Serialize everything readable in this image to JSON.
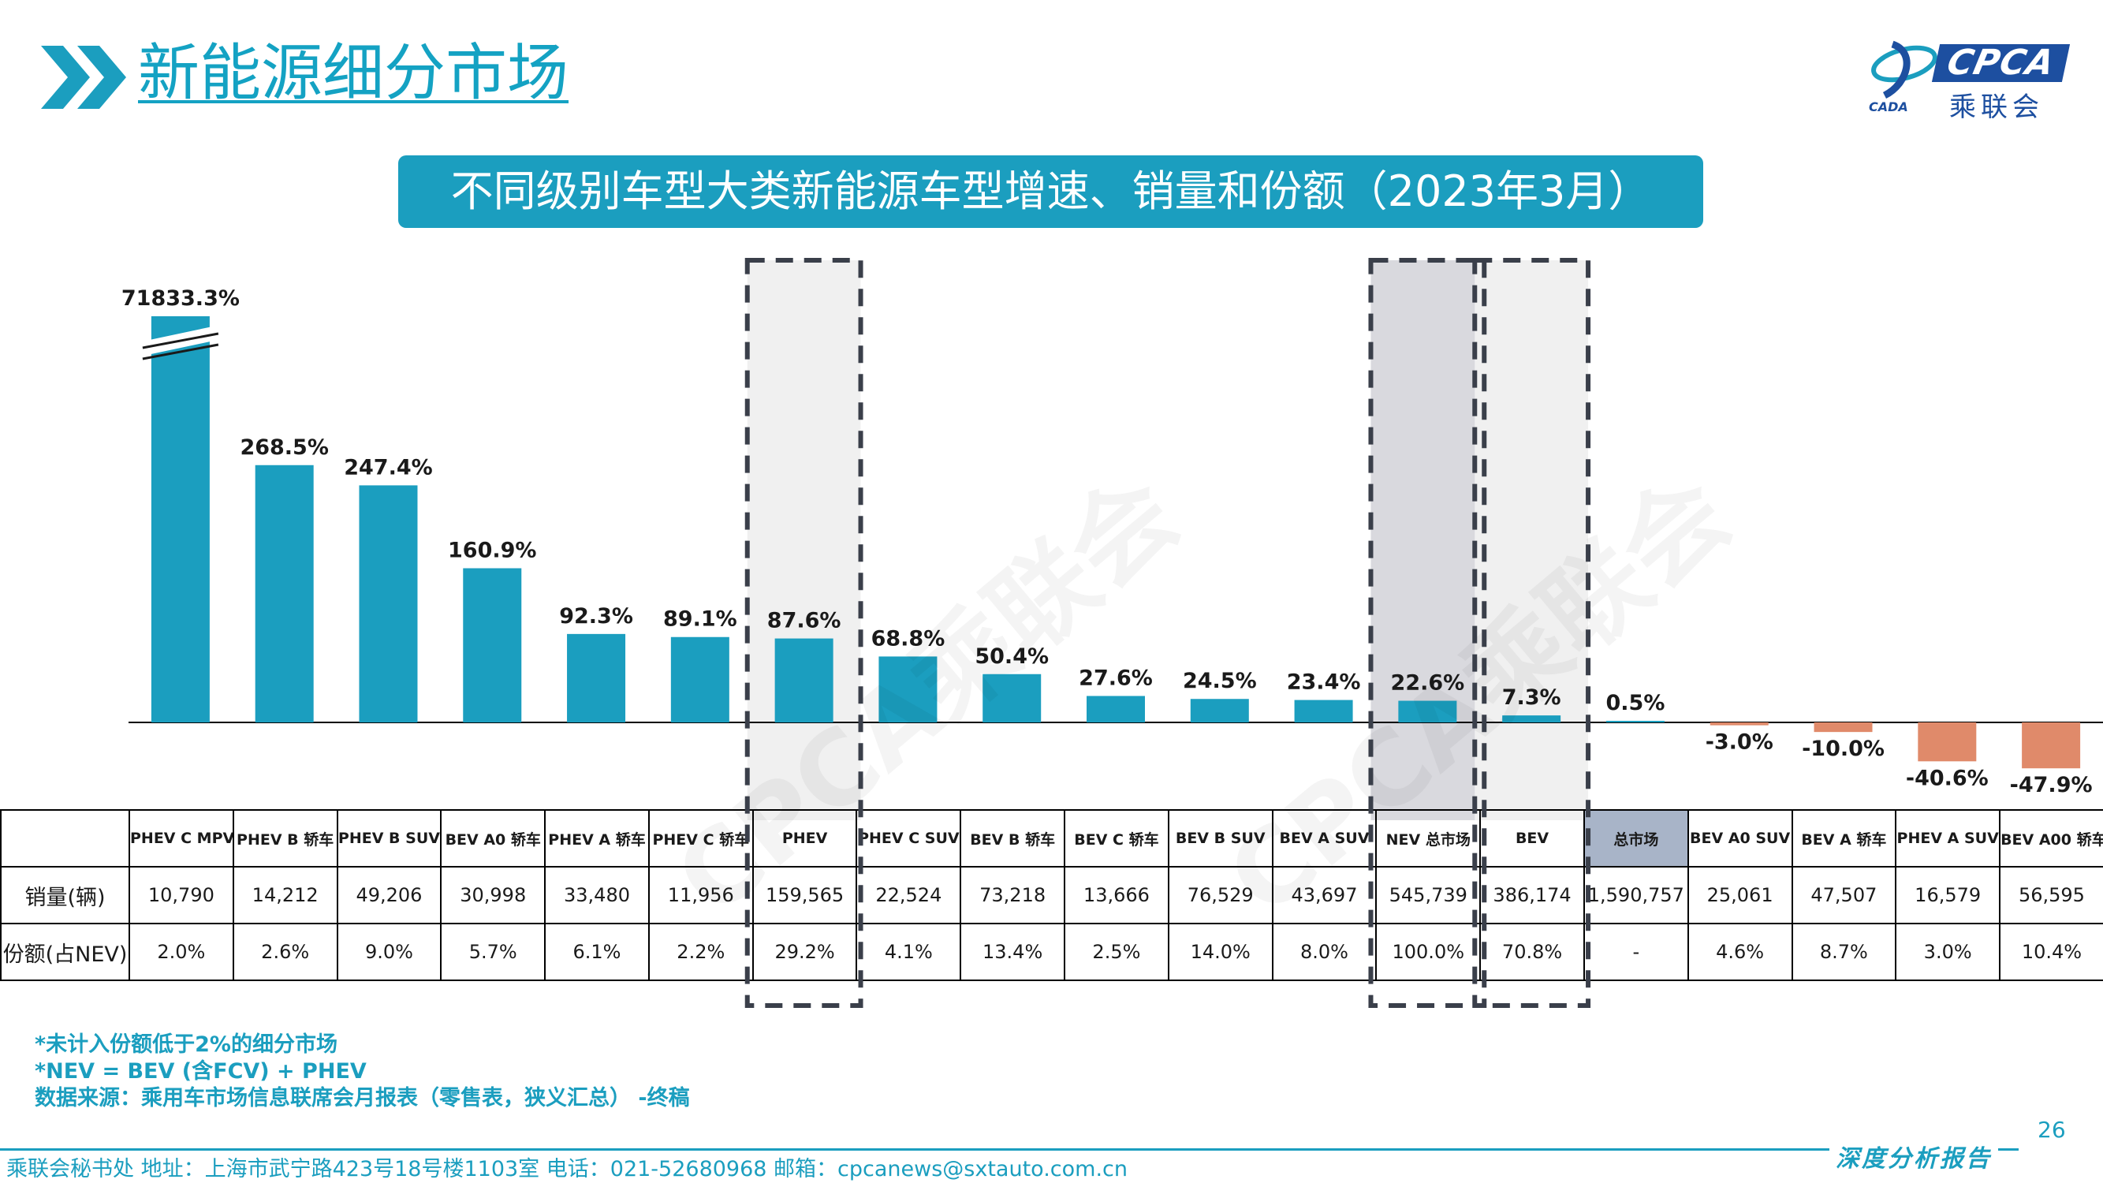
{
  "header": {
    "title": "新能源细分市场",
    "logo_text": "CPCA",
    "logo_cn": "乘联会",
    "logo_small": "CADA"
  },
  "chart_title": "不同级别车型大类新能源车型增速、销量和份额（2023年3月）",
  "colors": {
    "accent": "#1b9ebf",
    "positive_bar": "#1b9ebf",
    "negative_bar": "#e08a6a",
    "highlight_light": "#f0f0f0",
    "highlight_dark": "#d9d9de",
    "total_cell": "#a8b4c8"
  },
  "chart_data": {
    "type": "bar",
    "title": "不同级别车型大类新能源车型增速、销量和份额（2023年3月）",
    "ylabel": "",
    "xlabel": "",
    "categories": [
      "PHEV C MPV",
      "PHEV B 轿车",
      "PHEV B SUV",
      "BEV A0 轿车",
      "PHEV A 轿车",
      "PHEV C 轿车",
      "PHEV",
      "PHEV C SUV",
      "BEV B 轿车",
      "BEV C 轿车",
      "BEV B SUV",
      "BEV A SUV",
      "NEV 总市场",
      "BEV",
      "总市场",
      "BEV A0 SUV",
      "BEV A 轿车",
      "PHEV A SUV",
      "BEV A00 轿车"
    ],
    "series": [
      {
        "values": [
          71833.3,
          268.5,
          247.4,
          160.9,
          92.3,
          89.1,
          87.6,
          68.8,
          50.4,
          27.6,
          24.5,
          23.4,
          22.6,
          7.3,
          0.5,
          -3.0,
          -10.0,
          -40.6,
          -47.9
        ],
        "labels": [
          "71833.3%",
          "268.5%",
          "247.4%",
          "160.9%",
          "92.3%",
          "89.1%",
          "87.6%",
          "68.8%",
          "50.4%",
          "27.6%",
          "24.5%",
          "23.4%",
          "22.6%",
          "7.3%",
          "0.5%",
          "-3.0%",
          "-10.0%",
          "-40.6%",
          "-47.9%"
        ]
      }
    ],
    "axis_break_on_first_bar": true,
    "highlighted_columns": [
      "PHEV",
      "NEV 总市场",
      "BEV"
    ],
    "gridlines": false,
    "legend": "none"
  },
  "table": {
    "headers": [
      "",
      "PHEV C MPV",
      "PHEV B 轿车",
      "PHEV B SUV",
      "BEV A0 轿车",
      "PHEV A 轿车",
      "PHEV C 轿车",
      "PHEV",
      "PHEV C SUV",
      "BEV B 轿车",
      "BEV C 轿车",
      "BEV B SUV",
      "BEV A SUV",
      "NEV 总市场",
      "BEV",
      "总市场",
      "BEV A0 SUV",
      "BEV A 轿车",
      "PHEV A SUV",
      "BEV A00 轿车"
    ],
    "rows": [
      [
        "销量(辆)",
        "10,790",
        "14,212",
        "49,206",
        "30,998",
        "33,480",
        "11,956",
        "159,565",
        "22,524",
        "73,218",
        "13,666",
        "76,529",
        "43,697",
        "545,739",
        "386,174",
        "1,590,757",
        "25,061",
        "47,507",
        "16,579",
        "56,595"
      ],
      [
        "份额(占NEV)",
        "2.0%",
        "2.6%",
        "9.0%",
        "5.7%",
        "6.1%",
        "2.2%",
        "29.2%",
        "4.1%",
        "13.4%",
        "2.5%",
        "14.0%",
        "8.0%",
        "100.0%",
        "70.8%",
        "-",
        "4.6%",
        "8.7%",
        "3.0%",
        "10.4%"
      ]
    ]
  },
  "notes": [
    "*未计入份额低于2%的细分市场",
    "*NEV = BEV (含FCV) + PHEV",
    "数据来源：乘用车市场信息联席会月报表（零售表，狭义汇总） -终稿"
  ],
  "page_number": "26",
  "footer": {
    "contact": "乘联会秘书处   地址：上海市武宁路423号18号楼1103室  电话：021-52680968   邮箱：cpcanews@sxtauto.com.cn",
    "report_label": "深度分析报告"
  }
}
